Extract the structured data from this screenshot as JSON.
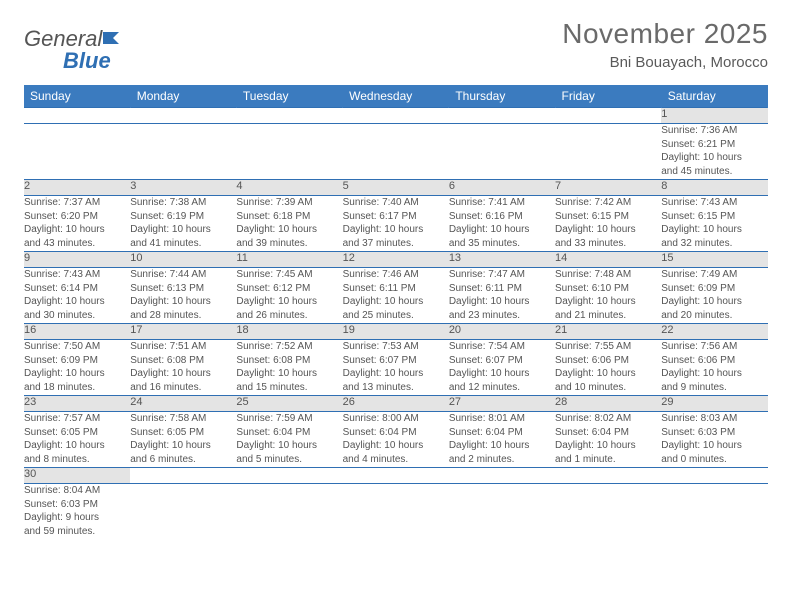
{
  "brand": {
    "part1": "General",
    "part2": "Blue"
  },
  "title": "November 2025",
  "location": "Bni Bouayach, Morocco",
  "colors": {
    "header_bg": "#3b7bbf",
    "header_text": "#ffffff",
    "daynum_bg": "#e4e4e4",
    "rule": "#2f6fb3",
    "body_text": "#555555",
    "title_text": "#6a6a6a"
  },
  "day_headers": [
    "Sunday",
    "Monday",
    "Tuesday",
    "Wednesday",
    "Thursday",
    "Friday",
    "Saturday"
  ],
  "weeks": [
    [
      null,
      null,
      null,
      null,
      null,
      null,
      {
        "n": "1",
        "sr": "Sunrise: 7:36 AM",
        "ss": "Sunset: 6:21 PM",
        "d1": "Daylight: 10 hours",
        "d2": "and 45 minutes."
      }
    ],
    [
      {
        "n": "2",
        "sr": "Sunrise: 7:37 AM",
        "ss": "Sunset: 6:20 PM",
        "d1": "Daylight: 10 hours",
        "d2": "and 43 minutes."
      },
      {
        "n": "3",
        "sr": "Sunrise: 7:38 AM",
        "ss": "Sunset: 6:19 PM",
        "d1": "Daylight: 10 hours",
        "d2": "and 41 minutes."
      },
      {
        "n": "4",
        "sr": "Sunrise: 7:39 AM",
        "ss": "Sunset: 6:18 PM",
        "d1": "Daylight: 10 hours",
        "d2": "and 39 minutes."
      },
      {
        "n": "5",
        "sr": "Sunrise: 7:40 AM",
        "ss": "Sunset: 6:17 PM",
        "d1": "Daylight: 10 hours",
        "d2": "and 37 minutes."
      },
      {
        "n": "6",
        "sr": "Sunrise: 7:41 AM",
        "ss": "Sunset: 6:16 PM",
        "d1": "Daylight: 10 hours",
        "d2": "and 35 minutes."
      },
      {
        "n": "7",
        "sr": "Sunrise: 7:42 AM",
        "ss": "Sunset: 6:15 PM",
        "d1": "Daylight: 10 hours",
        "d2": "and 33 minutes."
      },
      {
        "n": "8",
        "sr": "Sunrise: 7:43 AM",
        "ss": "Sunset: 6:15 PM",
        "d1": "Daylight: 10 hours",
        "d2": "and 32 minutes."
      }
    ],
    [
      {
        "n": "9",
        "sr": "Sunrise: 7:43 AM",
        "ss": "Sunset: 6:14 PM",
        "d1": "Daylight: 10 hours",
        "d2": "and 30 minutes."
      },
      {
        "n": "10",
        "sr": "Sunrise: 7:44 AM",
        "ss": "Sunset: 6:13 PM",
        "d1": "Daylight: 10 hours",
        "d2": "and 28 minutes."
      },
      {
        "n": "11",
        "sr": "Sunrise: 7:45 AM",
        "ss": "Sunset: 6:12 PM",
        "d1": "Daylight: 10 hours",
        "d2": "and 26 minutes."
      },
      {
        "n": "12",
        "sr": "Sunrise: 7:46 AM",
        "ss": "Sunset: 6:11 PM",
        "d1": "Daylight: 10 hours",
        "d2": "and 25 minutes."
      },
      {
        "n": "13",
        "sr": "Sunrise: 7:47 AM",
        "ss": "Sunset: 6:11 PM",
        "d1": "Daylight: 10 hours",
        "d2": "and 23 minutes."
      },
      {
        "n": "14",
        "sr": "Sunrise: 7:48 AM",
        "ss": "Sunset: 6:10 PM",
        "d1": "Daylight: 10 hours",
        "d2": "and 21 minutes."
      },
      {
        "n": "15",
        "sr": "Sunrise: 7:49 AM",
        "ss": "Sunset: 6:09 PM",
        "d1": "Daylight: 10 hours",
        "d2": "and 20 minutes."
      }
    ],
    [
      {
        "n": "16",
        "sr": "Sunrise: 7:50 AM",
        "ss": "Sunset: 6:09 PM",
        "d1": "Daylight: 10 hours",
        "d2": "and 18 minutes."
      },
      {
        "n": "17",
        "sr": "Sunrise: 7:51 AM",
        "ss": "Sunset: 6:08 PM",
        "d1": "Daylight: 10 hours",
        "d2": "and 16 minutes."
      },
      {
        "n": "18",
        "sr": "Sunrise: 7:52 AM",
        "ss": "Sunset: 6:08 PM",
        "d1": "Daylight: 10 hours",
        "d2": "and 15 minutes."
      },
      {
        "n": "19",
        "sr": "Sunrise: 7:53 AM",
        "ss": "Sunset: 6:07 PM",
        "d1": "Daylight: 10 hours",
        "d2": "and 13 minutes."
      },
      {
        "n": "20",
        "sr": "Sunrise: 7:54 AM",
        "ss": "Sunset: 6:07 PM",
        "d1": "Daylight: 10 hours",
        "d2": "and 12 minutes."
      },
      {
        "n": "21",
        "sr": "Sunrise: 7:55 AM",
        "ss": "Sunset: 6:06 PM",
        "d1": "Daylight: 10 hours",
        "d2": "and 10 minutes."
      },
      {
        "n": "22",
        "sr": "Sunrise: 7:56 AM",
        "ss": "Sunset: 6:06 PM",
        "d1": "Daylight: 10 hours",
        "d2": "and 9 minutes."
      }
    ],
    [
      {
        "n": "23",
        "sr": "Sunrise: 7:57 AM",
        "ss": "Sunset: 6:05 PM",
        "d1": "Daylight: 10 hours",
        "d2": "and 8 minutes."
      },
      {
        "n": "24",
        "sr": "Sunrise: 7:58 AM",
        "ss": "Sunset: 6:05 PM",
        "d1": "Daylight: 10 hours",
        "d2": "and 6 minutes."
      },
      {
        "n": "25",
        "sr": "Sunrise: 7:59 AM",
        "ss": "Sunset: 6:04 PM",
        "d1": "Daylight: 10 hours",
        "d2": "and 5 minutes."
      },
      {
        "n": "26",
        "sr": "Sunrise: 8:00 AM",
        "ss": "Sunset: 6:04 PM",
        "d1": "Daylight: 10 hours",
        "d2": "and 4 minutes."
      },
      {
        "n": "27",
        "sr": "Sunrise: 8:01 AM",
        "ss": "Sunset: 6:04 PM",
        "d1": "Daylight: 10 hours",
        "d2": "and 2 minutes."
      },
      {
        "n": "28",
        "sr": "Sunrise: 8:02 AM",
        "ss": "Sunset: 6:04 PM",
        "d1": "Daylight: 10 hours",
        "d2": "and 1 minute."
      },
      {
        "n": "29",
        "sr": "Sunrise: 8:03 AM",
        "ss": "Sunset: 6:03 PM",
        "d1": "Daylight: 10 hours",
        "d2": "and 0 minutes."
      }
    ],
    [
      {
        "n": "30",
        "sr": "Sunrise: 8:04 AM",
        "ss": "Sunset: 6:03 PM",
        "d1": "Daylight: 9 hours",
        "d2": "and 59 minutes."
      },
      null,
      null,
      null,
      null,
      null,
      null
    ]
  ]
}
